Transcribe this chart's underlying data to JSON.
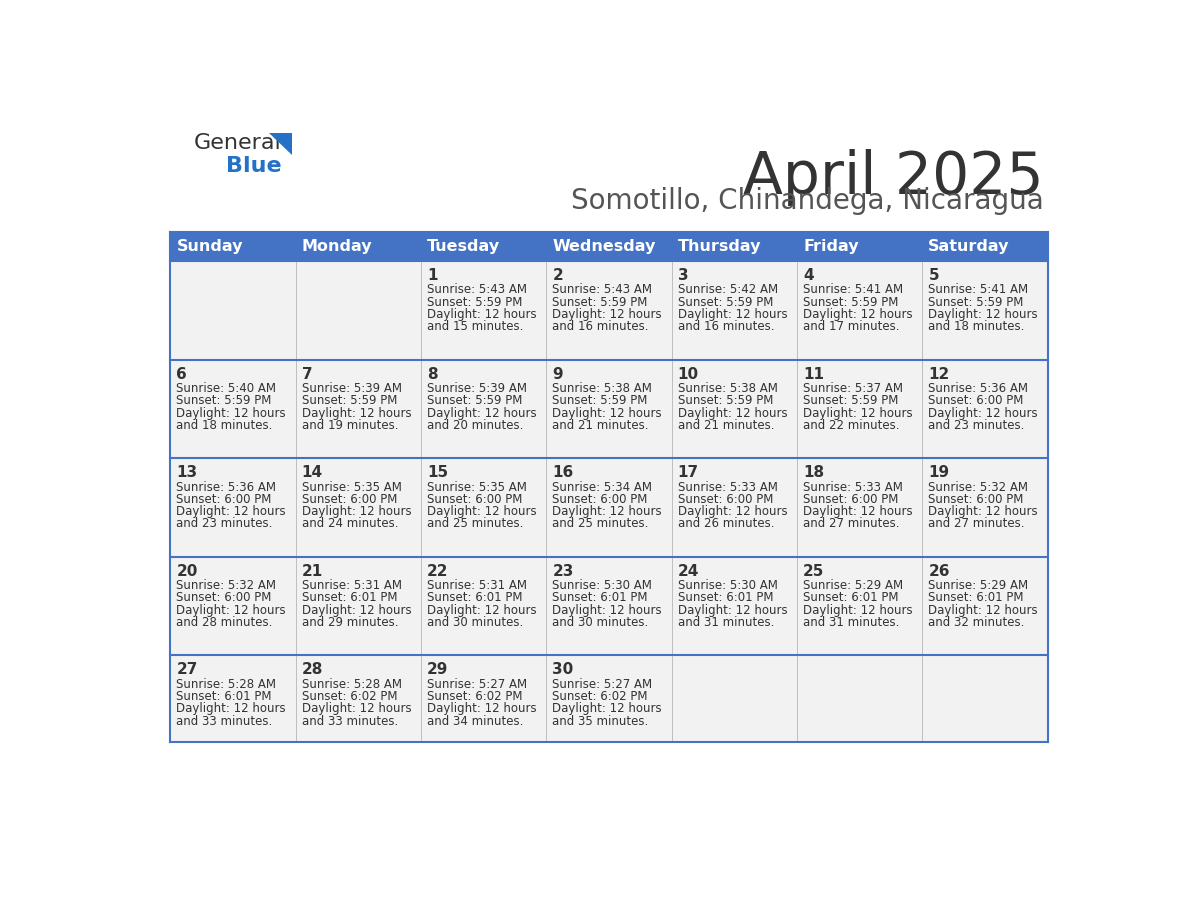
{
  "title": "April 2025",
  "subtitle": "Somotillo, Chinandega, Nicaragua",
  "header_bg_color": "#4472C4",
  "header_text_color": "#FFFFFF",
  "cell_bg_color": "#F2F2F2",
  "border_color": "#4472C4",
  "separator_color": "#4472C4",
  "title_color": "#333333",
  "subtitle_color": "#555555",
  "text_color": "#333333",
  "day_headers": [
    "Sunday",
    "Monday",
    "Tuesday",
    "Wednesday",
    "Thursday",
    "Friday",
    "Saturday"
  ],
  "calendar": [
    [
      {
        "day": "",
        "sunrise": "",
        "sunset": "",
        "daylight": ""
      },
      {
        "day": "",
        "sunrise": "",
        "sunset": "",
        "daylight": ""
      },
      {
        "day": "1",
        "sunrise": "5:43 AM",
        "sunset": "5:59 PM",
        "daylight": "12 hours and 15 minutes."
      },
      {
        "day": "2",
        "sunrise": "5:43 AM",
        "sunset": "5:59 PM",
        "daylight": "12 hours and 16 minutes."
      },
      {
        "day": "3",
        "sunrise": "5:42 AM",
        "sunset": "5:59 PM",
        "daylight": "12 hours and 16 minutes."
      },
      {
        "day": "4",
        "sunrise": "5:41 AM",
        "sunset": "5:59 PM",
        "daylight": "12 hours and 17 minutes."
      },
      {
        "day": "5",
        "sunrise": "5:41 AM",
        "sunset": "5:59 PM",
        "daylight": "12 hours and 18 minutes."
      }
    ],
    [
      {
        "day": "6",
        "sunrise": "5:40 AM",
        "sunset": "5:59 PM",
        "daylight": "12 hours and 18 minutes."
      },
      {
        "day": "7",
        "sunrise": "5:39 AM",
        "sunset": "5:59 PM",
        "daylight": "12 hours and 19 minutes."
      },
      {
        "day": "8",
        "sunrise": "5:39 AM",
        "sunset": "5:59 PM",
        "daylight": "12 hours and 20 minutes."
      },
      {
        "day": "9",
        "sunrise": "5:38 AM",
        "sunset": "5:59 PM",
        "daylight": "12 hours and 21 minutes."
      },
      {
        "day": "10",
        "sunrise": "5:38 AM",
        "sunset": "5:59 PM",
        "daylight": "12 hours and 21 minutes."
      },
      {
        "day": "11",
        "sunrise": "5:37 AM",
        "sunset": "5:59 PM",
        "daylight": "12 hours and 22 minutes."
      },
      {
        "day": "12",
        "sunrise": "5:36 AM",
        "sunset": "6:00 PM",
        "daylight": "12 hours and 23 minutes."
      }
    ],
    [
      {
        "day": "13",
        "sunrise": "5:36 AM",
        "sunset": "6:00 PM",
        "daylight": "12 hours and 23 minutes."
      },
      {
        "day": "14",
        "sunrise": "5:35 AM",
        "sunset": "6:00 PM",
        "daylight": "12 hours and 24 minutes."
      },
      {
        "day": "15",
        "sunrise": "5:35 AM",
        "sunset": "6:00 PM",
        "daylight": "12 hours and 25 minutes."
      },
      {
        "day": "16",
        "sunrise": "5:34 AM",
        "sunset": "6:00 PM",
        "daylight": "12 hours and 25 minutes."
      },
      {
        "day": "17",
        "sunrise": "5:33 AM",
        "sunset": "6:00 PM",
        "daylight": "12 hours and 26 minutes."
      },
      {
        "day": "18",
        "sunrise": "5:33 AM",
        "sunset": "6:00 PM",
        "daylight": "12 hours and 27 minutes."
      },
      {
        "day": "19",
        "sunrise": "5:32 AM",
        "sunset": "6:00 PM",
        "daylight": "12 hours and 27 minutes."
      }
    ],
    [
      {
        "day": "20",
        "sunrise": "5:32 AM",
        "sunset": "6:00 PM",
        "daylight": "12 hours and 28 minutes."
      },
      {
        "day": "21",
        "sunrise": "5:31 AM",
        "sunset": "6:01 PM",
        "daylight": "12 hours and 29 minutes."
      },
      {
        "day": "22",
        "sunrise": "5:31 AM",
        "sunset": "6:01 PM",
        "daylight": "12 hours and 30 minutes."
      },
      {
        "day": "23",
        "sunrise": "5:30 AM",
        "sunset": "6:01 PM",
        "daylight": "12 hours and 30 minutes."
      },
      {
        "day": "24",
        "sunrise": "5:30 AM",
        "sunset": "6:01 PM",
        "daylight": "12 hours and 31 minutes."
      },
      {
        "day": "25",
        "sunrise": "5:29 AM",
        "sunset": "6:01 PM",
        "daylight": "12 hours and 31 minutes."
      },
      {
        "day": "26",
        "sunrise": "5:29 AM",
        "sunset": "6:01 PM",
        "daylight": "12 hours and 32 minutes."
      }
    ],
    [
      {
        "day": "27",
        "sunrise": "5:28 AM",
        "sunset": "6:01 PM",
        "daylight": "12 hours and 33 minutes."
      },
      {
        "day": "28",
        "sunrise": "5:28 AM",
        "sunset": "6:02 PM",
        "daylight": "12 hours and 33 minutes."
      },
      {
        "day": "29",
        "sunrise": "5:27 AM",
        "sunset": "6:02 PM",
        "daylight": "12 hours and 34 minutes."
      },
      {
        "day": "30",
        "sunrise": "5:27 AM",
        "sunset": "6:02 PM",
        "daylight": "12 hours and 35 minutes."
      },
      {
        "day": "",
        "sunrise": "",
        "sunset": "",
        "daylight": ""
      },
      {
        "day": "",
        "sunrise": "",
        "sunset": "",
        "daylight": ""
      },
      {
        "day": "",
        "sunrise": "",
        "sunset": "",
        "daylight": ""
      }
    ]
  ],
  "logo_general_color": "#333333",
  "logo_blue_color": "#2472C8",
  "logo_triangle_color": "#2472C8"
}
